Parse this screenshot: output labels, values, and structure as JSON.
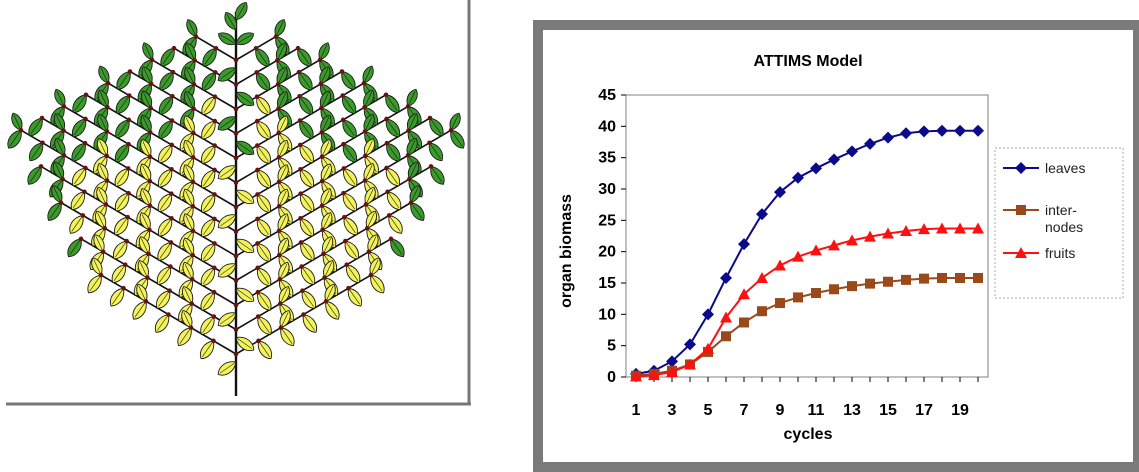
{
  "plant": {
    "description_icon": "plant-architecture-illustration",
    "colors": {
      "leaf_old": "#3a9a2a",
      "leaf_young": "#f2f25a",
      "stem": "#111111",
      "node": "#6a1212",
      "frame": "#777777"
    }
  },
  "chart_data": {
    "type": "line",
    "title": "ATTIMS Model",
    "xlabel": "cycles",
    "ylabel": "organ biomass",
    "x": [
      1,
      2,
      3,
      4,
      5,
      6,
      7,
      8,
      9,
      10,
      11,
      12,
      13,
      14,
      15,
      16,
      17,
      18,
      19,
      20
    ],
    "x_tick_labels": [
      "1",
      "3",
      "5",
      "7",
      "9",
      "11",
      "13",
      "15",
      "17",
      "19"
    ],
    "ylim": [
      0,
      45
    ],
    "y_ticks": [
      "0",
      "5",
      "10",
      "15",
      "20",
      "25",
      "30",
      "35",
      "40",
      "45"
    ],
    "grid": false,
    "legend_position": "right",
    "series": [
      {
        "name": "leaves",
        "color": "#0a0a8a",
        "marker": "diamond",
        "values": [
          0.5,
          1.0,
          2.5,
          5.2,
          10.0,
          15.8,
          21.2,
          26.0,
          29.5,
          31.8,
          33.3,
          34.7,
          36.0,
          37.2,
          38.2,
          38.9,
          39.2,
          39.3,
          39.3,
          39.3
        ]
      },
      {
        "name": "inter-nodes",
        "color": "#9a4a1a",
        "marker": "square",
        "values": [
          0.2,
          0.5,
          1.0,
          2.0,
          4.0,
          6.5,
          8.7,
          10.5,
          11.8,
          12.7,
          13.4,
          14.0,
          14.5,
          14.9,
          15.2,
          15.5,
          15.7,
          15.8,
          15.8,
          15.8
        ]
      },
      {
        "name": "fruits",
        "color": "#ff1010",
        "marker": "triangle",
        "values": [
          0.1,
          0.3,
          0.8,
          2.0,
          4.5,
          9.5,
          13.2,
          15.8,
          17.8,
          19.2,
          20.2,
          21.0,
          21.8,
          22.4,
          22.9,
          23.3,
          23.6,
          23.7,
          23.7,
          23.7
        ]
      }
    ],
    "legend": [
      "leaves",
      "inter-\nnodes",
      "fruits"
    ],
    "frame_colors": {
      "outer": "#7a7a7a",
      "plot_border": "#808080",
      "legend_border": "#aaaaaa"
    }
  }
}
